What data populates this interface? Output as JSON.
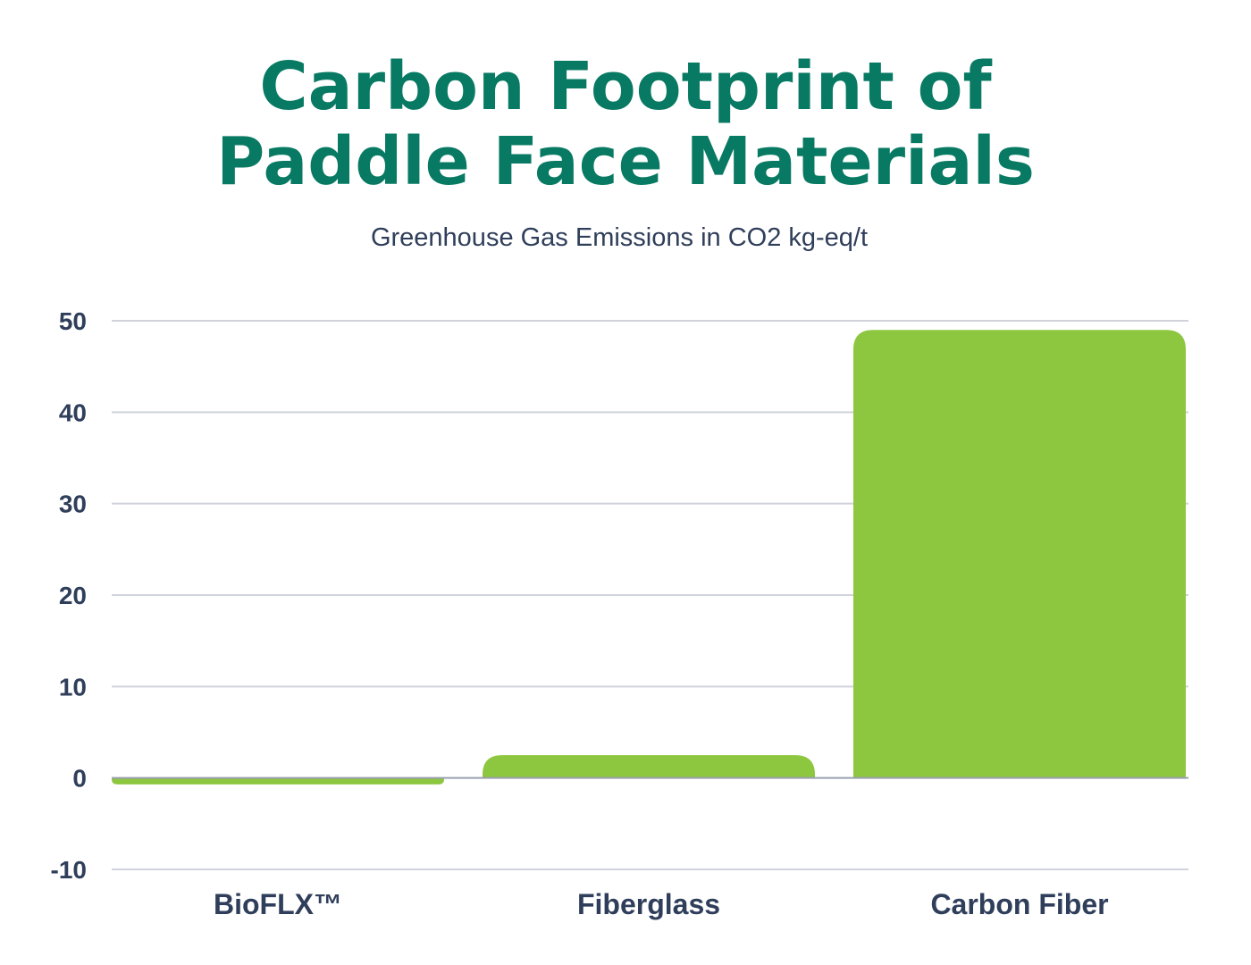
{
  "title_line1": "Carbon Footprint of",
  "title_line2": "Paddle Face Materials",
  "subtitle": "Greenhouse Gas Emissions in CO2 kg-eq/t",
  "colors": {
    "title": "#087a63",
    "text": "#2f3e5a",
    "bar": "#8dc63f",
    "grid": "#d0d3dc",
    "baseline": "#9aa1ae"
  },
  "chart_data": {
    "type": "bar",
    "categories": [
      "BioFLX™",
      "Fiberglass",
      "Carbon Fiber"
    ],
    "values": [
      -0.7,
      2.5,
      49
    ],
    "yticks": [
      50,
      40,
      30,
      20,
      10,
      0,
      -10
    ],
    "ylim": [
      -10,
      50
    ],
    "title": "Carbon Footprint of Paddle Face Materials",
    "subtitle": "Greenhouse Gas Emissions in CO2 kg-eq/t",
    "grid": true
  }
}
